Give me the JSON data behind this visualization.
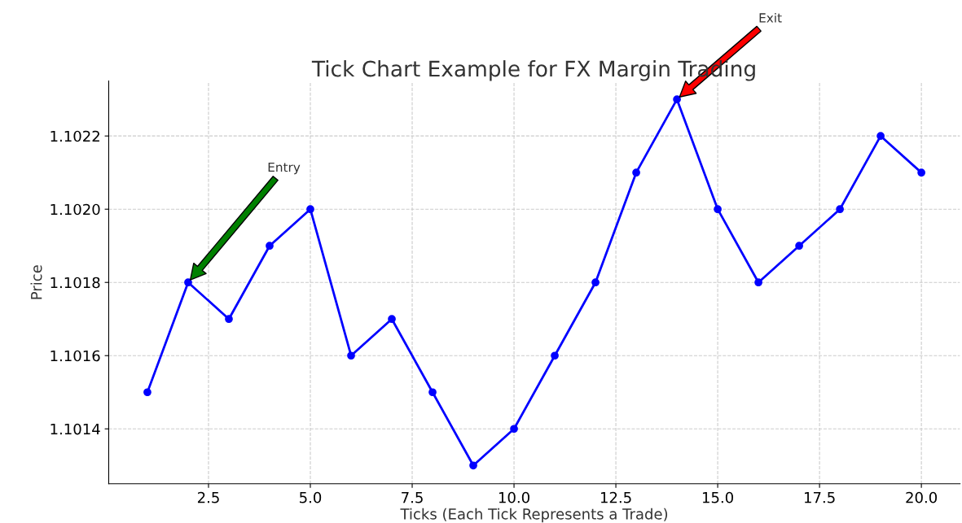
{
  "chart_data": {
    "type": "line",
    "title": "Tick Chart Example for FX Margin Trading",
    "xlabel": "Ticks (Each Tick Represents a Trade)",
    "ylabel": "Price",
    "x": [
      1,
      2,
      3,
      4,
      5,
      6,
      7,
      8,
      9,
      10,
      11,
      12,
      13,
      14,
      15,
      16,
      17,
      18,
      19,
      20
    ],
    "series": [
      {
        "color": "#0000ff",
        "values": [
          1.1015,
          1.1018,
          1.1017,
          1.1019,
          1.102,
          1.1016,
          1.1017,
          1.1015,
          1.1013,
          1.1014,
          1.1016,
          1.1018,
          1.1021,
          1.1023,
          1.102,
          1.1018,
          1.1019,
          1.102,
          1.1022,
          1.1021
        ]
      }
    ],
    "xlim": [
      0.05,
      20.95
    ],
    "ylim": [
      1.10125,
      1.10235
    ],
    "xticks": [
      {
        "value": 2.5,
        "label": "2.5"
      },
      {
        "value": 5,
        "label": "5.0"
      },
      {
        "value": 7.5,
        "label": "7.5"
      },
      {
        "value": 10,
        "label": "10.0"
      },
      {
        "value": 12.5,
        "label": "12.5"
      },
      {
        "value": 15,
        "label": "15.0"
      },
      {
        "value": 17.5,
        "label": "17.5"
      },
      {
        "value": 20,
        "label": "20.0"
      }
    ],
    "yticks": [
      1.1014,
      1.1016,
      1.1018,
      {
        "value": 1.102,
        "label": "1.1020"
      },
      {
        "value": 1.1022,
        "label": "1.1022"
      }
    ],
    "annotations": [
      "Entry",
      "Exit"
    ],
    "grid": true,
    "marker": "circle",
    "line_style": "solid"
  }
}
